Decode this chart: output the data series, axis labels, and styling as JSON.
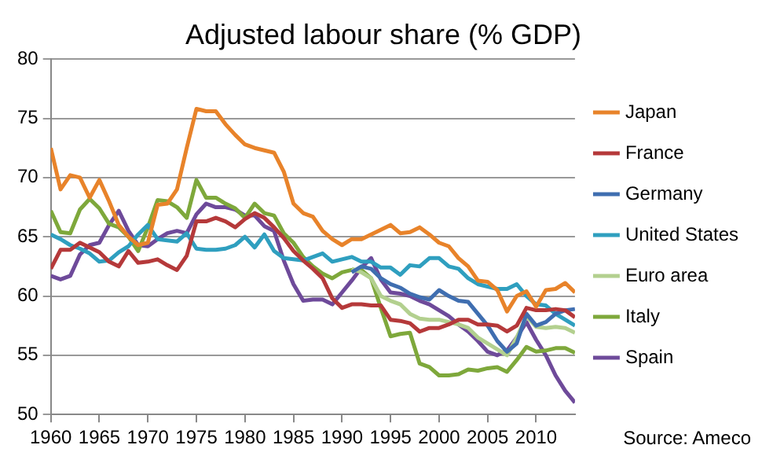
{
  "chart_data": {
    "type": "line",
    "title": "Adjusted labour share (% GDP)",
    "annotations": [
      "Source: Ameco"
    ],
    "x": [
      1960,
      1961,
      1962,
      1963,
      1964,
      1965,
      1966,
      1967,
      1968,
      1969,
      1970,
      1971,
      1972,
      1973,
      1974,
      1975,
      1976,
      1977,
      1978,
      1979,
      1980,
      1981,
      1982,
      1983,
      1984,
      1985,
      1986,
      1987,
      1988,
      1989,
      1990,
      1991,
      1992,
      1993,
      1994,
      1995,
      1996,
      1997,
      1998,
      1999,
      2000,
      2001,
      2002,
      2003,
      2004,
      2005,
      2006,
      2007,
      2008,
      2009,
      2010,
      2011,
      2012,
      2013,
      2014
    ],
    "xlim": [
      1960,
      2014
    ],
    "xticks": [
      1960,
      1965,
      1970,
      1975,
      1980,
      1985,
      1990,
      1995,
      2000,
      2005,
      2010
    ],
    "ylim": [
      50,
      80
    ],
    "yticks": [
      50,
      55,
      60,
      65,
      70,
      75,
      80
    ],
    "grid": "y",
    "legend": "right",
    "marker": "none",
    "line_style": "solid",
    "series": [
      {
        "name": "Japan",
        "color": "#e8832a",
        "values": [
          72.5,
          69,
          70.2,
          70,
          68.3,
          69.8,
          68,
          66,
          65,
          64.3,
          64.5,
          67.7,
          67.8,
          69,
          72.5,
          75.8,
          75.6,
          75.6,
          74.5,
          73.6,
          72.8,
          72.5,
          72.3,
          72.1,
          70.5,
          67.8,
          67,
          66.7,
          65.5,
          64.8,
          64.3,
          64.8,
          64.8,
          65.2,
          65.6,
          66,
          65.3,
          65.4,
          65.8,
          65.2,
          64.5,
          64.2,
          63.2,
          62.5,
          61.3,
          61.2,
          60.5,
          58.7,
          60,
          60.4,
          59.1,
          60.5,
          60.6,
          61.1,
          60.3
        ]
      },
      {
        "name": "France",
        "color": "#b5393a",
        "values": [
          62.3,
          63.9,
          63.9,
          64.5,
          64.1,
          63.7,
          62.9,
          62.5,
          63.8,
          62.8,
          62.9,
          63.1,
          62.6,
          62.2,
          63.4,
          66.3,
          66.3,
          66.6,
          66.3,
          65.8,
          66.5,
          67,
          66.6,
          65.8,
          64.9,
          63.8,
          63,
          62.3,
          61.5,
          59.8,
          59,
          59.3,
          59.3,
          59.2,
          59.2,
          58,
          57.9,
          57.7,
          57,
          57.3,
          57.3,
          57.6,
          58,
          58,
          57.6,
          57.6,
          57.5,
          57,
          57.5,
          59,
          58.8,
          58.8,
          58.9,
          58.8,
          58.2
        ]
      },
      {
        "name": "Germany",
        "color": "#3f6eb0",
        "values": [
          null,
          null,
          null,
          null,
          null,
          null,
          null,
          null,
          null,
          null,
          null,
          null,
          null,
          null,
          null,
          null,
          null,
          null,
          null,
          null,
          null,
          null,
          null,
          null,
          null,
          null,
          null,
          null,
          null,
          null,
          null,
          62,
          62.5,
          62.3,
          61.5,
          61,
          60.7,
          60.2,
          59.9,
          59.7,
          60.5,
          60,
          59.6,
          59.5,
          58.5,
          57.5,
          56.2,
          55.3,
          56,
          58.5,
          57.5,
          57.8,
          58.5,
          58.8,
          58.9
        ]
      },
      {
        "name": "United States",
        "color": "#2f9fbf",
        "values": [
          65.2,
          64.8,
          64.3,
          64,
          63.6,
          62.9,
          63,
          63.7,
          64.2,
          65.2,
          66,
          64.8,
          64.7,
          64.6,
          65.3,
          64,
          63.9,
          63.9,
          64,
          64.3,
          65,
          64.1,
          65.2,
          63.8,
          63.2,
          63.1,
          63,
          63.3,
          63.6,
          62.9,
          63.1,
          63.3,
          62.9,
          62.9,
          62.4,
          62.4,
          61.8,
          62.6,
          62.5,
          63.2,
          63.2,
          62.5,
          62.3,
          61.5,
          61,
          60.8,
          60.6,
          60.6,
          61,
          60,
          59.3,
          59.2,
          58.5,
          58,
          57.5
        ]
      },
      {
        "name": "Euro area",
        "color": "#b3d08f",
        "values": [
          null,
          null,
          null,
          null,
          null,
          null,
          null,
          null,
          null,
          null,
          null,
          null,
          null,
          null,
          null,
          null,
          null,
          null,
          null,
          null,
          null,
          null,
          null,
          null,
          null,
          null,
          null,
          null,
          null,
          null,
          null,
          62.3,
          62,
          61.5,
          60,
          59.6,
          59.3,
          58.5,
          58.1,
          58,
          58,
          57.8,
          57.6,
          57.3,
          56.5,
          56,
          55.5,
          55,
          56.5,
          58.3,
          57.4,
          57.3,
          57.4,
          57.3,
          56.9
        ]
      },
      {
        "name": "Italy",
        "color": "#7ea83b",
        "values": [
          67.2,
          65.4,
          65.3,
          67.3,
          68.2,
          67.4,
          66.1,
          65.8,
          65,
          63.8,
          65.8,
          68.1,
          68,
          67.5,
          66.6,
          69.8,
          68.3,
          68.3,
          67.8,
          67.4,
          66.6,
          67.8,
          67,
          66.8,
          65.3,
          64.5,
          63.3,
          62.5,
          61.9,
          61.5,
          62,
          62.2,
          62.2,
          61.5,
          59,
          56.6,
          56.8,
          56.9,
          54.3,
          54,
          53.3,
          53.3,
          53.4,
          53.8,
          53.7,
          53.9,
          54,
          53.6,
          54.6,
          55.7,
          55.3,
          55.4,
          55.6,
          55.6,
          55.2
        ]
      },
      {
        "name": "Spain",
        "color": "#6e4a9a",
        "values": [
          61.7,
          61.4,
          61.7,
          63.5,
          64.3,
          64.5,
          66,
          67.2,
          65.5,
          64.3,
          64.2,
          64.8,
          65.3,
          65.5,
          65.3,
          66.9,
          67.8,
          67.5,
          67.5,
          67.3,
          66.8,
          66.8,
          65.9,
          65.5,
          63,
          61,
          59.6,
          59.7,
          59.7,
          59.3,
          60.3,
          61.3,
          62.4,
          63.2,
          61.4,
          60.3,
          60.2,
          60,
          59.6,
          59.3,
          58.8,
          58.3,
          57.6,
          57,
          56.2,
          55.3,
          55,
          55.4,
          56.5,
          57.8,
          56.3,
          55,
          53.3,
          52,
          51
        ]
      }
    ]
  }
}
